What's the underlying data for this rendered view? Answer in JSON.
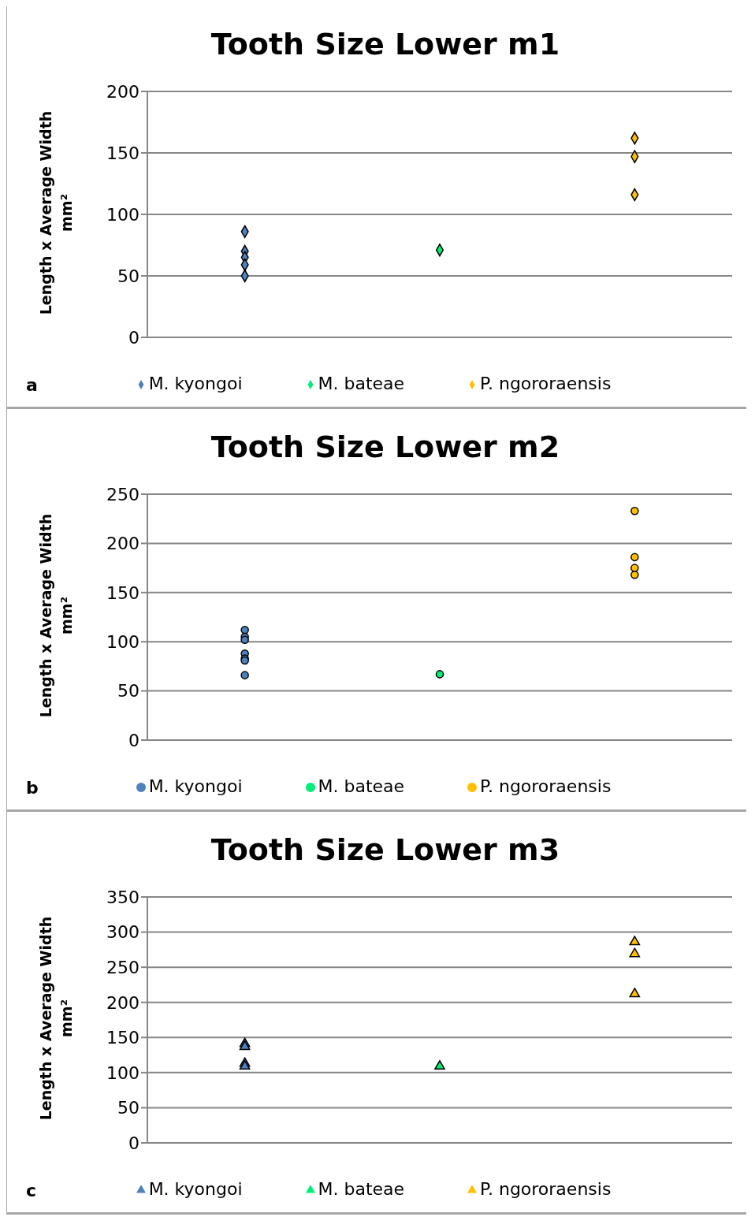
{
  "chart_data": [
    {
      "type": "scatter",
      "title": "Tooth Size Lower m1",
      "ylabel": "Length x Average Width mm²",
      "categories": [
        null,
        null,
        null
      ],
      "ylim": [
        0,
        200
      ],
      "yticks": [
        0,
        50,
        100,
        150,
        200
      ],
      "grid": "y",
      "legend": "bottom",
      "marker": "diamond",
      "annotations": [
        "a"
      ],
      "series": [
        {
          "name": "M. kyongoi",
          "color": "#4f81bd",
          "values": [
            86,
            null,
            null
          ]
        },
        {
          "name": "M. bateae",
          "color": "#00ee76",
          "values": [
            null,
            71,
            null
          ]
        },
        {
          "name": "P. ngororaensis",
          "color": "#ffc000",
          "values": [
            null,
            null,
            162
          ]
        },
        {
          "color": "#4f81bd",
          "values": [
            70,
            null,
            null
          ]
        },
        {
          "color": "#4f81bd",
          "values": [
            65,
            null,
            null
          ]
        },
        {
          "color": "#4f81bd",
          "values": [
            59,
            null,
            null
          ]
        },
        {
          "color": "#4f81bd",
          "values": [
            50,
            null,
            null
          ]
        },
        {
          "color": "#ffc000",
          "values": [
            null,
            null,
            147
          ]
        },
        {
          "color": "#ffc000",
          "values": [
            null,
            null,
            116
          ]
        }
      ]
    },
    {
      "type": "scatter",
      "title": "Tooth Size Lower m2",
      "ylabel": "Length x Average Width mm²",
      "categories": [
        null,
        null,
        null
      ],
      "ylim": [
        0,
        250
      ],
      "yticks": [
        0,
        50,
        100,
        150,
        200,
        250
      ],
      "grid": "y",
      "legend": "bottom",
      "marker": "circle",
      "annotations": [
        "b"
      ],
      "series": [
        {
          "name": "M. kyongoi",
          "color": "#4f81bd",
          "values": [
            112,
            null,
            null
          ]
        },
        {
          "name": "M. bateae",
          "color": "#00ee76",
          "values": [
            null,
            67,
            null
          ]
        },
        {
          "name": "P. ngororaensis",
          "color": "#ffc000",
          "values": [
            null,
            null,
            233
          ]
        },
        {
          "color": "#4f81bd",
          "values": [
            105,
            null,
            null
          ]
        },
        {
          "color": "#4f81bd",
          "values": [
            102,
            null,
            null
          ]
        },
        {
          "color": "#4f81bd",
          "values": [
            88,
            null,
            null
          ]
        },
        {
          "color": "#4f81bd",
          "values": [
            83,
            null,
            null
          ]
        },
        {
          "color": "#4f81bd",
          "values": [
            81,
            null,
            null
          ]
        },
        {
          "color": "#4f81bd",
          "values": [
            66,
            null,
            null
          ]
        },
        {
          "color": "#ffc000",
          "values": [
            null,
            null,
            186
          ]
        },
        {
          "color": "#ffc000",
          "values": [
            null,
            null,
            175
          ]
        },
        {
          "color": "#ffc000",
          "values": [
            null,
            null,
            168
          ]
        }
      ]
    },
    {
      "type": "scatter",
      "title": "Tooth Size Lower m3",
      "ylabel": "Length x Average Width mm²",
      "categories": [
        null,
        null,
        null
      ],
      "ylim": [
        0,
        350
      ],
      "yticks": [
        0,
        50,
        100,
        150,
        200,
        250,
        300,
        350
      ],
      "grid": "y",
      "legend": "bottom",
      "marker": "triangle",
      "annotations": [
        "c"
      ],
      "series": [
        {
          "name": "M. kyongoi",
          "color": "#4f81bd",
          "values": [
            141,
            null,
            null
          ]
        },
        {
          "name": "M. bateae",
          "color": "#00ee76",
          "values": [
            null,
            109,
            null
          ]
        },
        {
          "name": "P. ngororaensis",
          "color": "#ffc000",
          "values": [
            null,
            null,
            286
          ]
        },
        {
          "color": "#4f81bd",
          "values": [
            137,
            null,
            null
          ]
        },
        {
          "color": "#4f81bd",
          "values": [
            113,
            null,
            null
          ]
        },
        {
          "color": "#4f81bd",
          "values": [
            109,
            null,
            null
          ]
        },
        {
          "color": "#ffc000",
          "values": [
            null,
            null,
            269
          ]
        },
        {
          "color": "#ffc000",
          "values": [
            null,
            null,
            212
          ]
        }
      ]
    }
  ]
}
